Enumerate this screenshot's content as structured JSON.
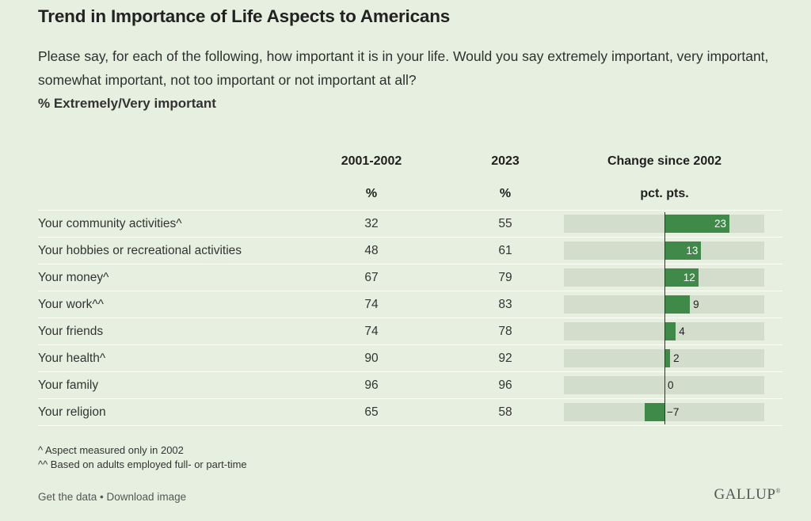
{
  "title": "Trend in Importance of Life Aspects to Americans",
  "subtitle": "Please say, for each of the following, how important it is in your life. Would you say extremely important, very important, somewhat important, not too important or not important at all?",
  "measure_label": "% Extremely/Very important",
  "columns": {
    "col1": "2001-2002",
    "col1_unit": "%",
    "col2": "2023",
    "col2_unit": "%",
    "col3": "Change since 2002",
    "col3_unit": "pct. pts."
  },
  "footnotes": [
    "^ Aspect measured only in 2002",
    "^^ Based on adults employed full- or part-time"
  ],
  "footer": {
    "links": "Get the data • Download image",
    "logo": "GALLUP"
  },
  "colors": {
    "background": "#e7f0e0",
    "bar": "#3f8a48",
    "track": "#d3ddcb"
  },
  "chart_data": {
    "type": "table",
    "categories": [
      "Your community activities^",
      "Your hobbies or recreational activities",
      "Your money^",
      "Your work^^",
      "Your friends",
      "Your health^",
      "Your family",
      "Your religion"
    ],
    "series": [
      {
        "name": "2001-2002",
        "values": [
          32,
          48,
          67,
          74,
          74,
          90,
          96,
          65
        ]
      },
      {
        "name": "2023",
        "values": [
          55,
          61,
          79,
          83,
          78,
          92,
          96,
          58
        ]
      },
      {
        "name": "Change since 2002",
        "values": [
          23,
          13,
          12,
          9,
          4,
          2,
          0,
          -7
        ]
      }
    ],
    "change_labels": [
      "23",
      "13",
      "12",
      "9",
      "4",
      "2",
      "0",
      "−7"
    ]
  }
}
